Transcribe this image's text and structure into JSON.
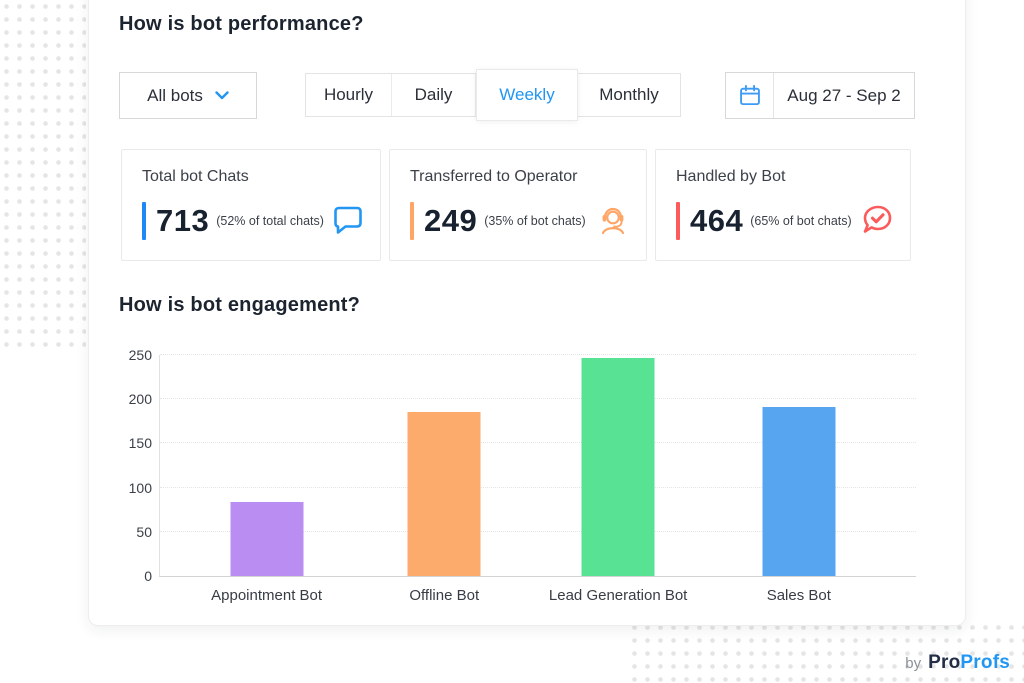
{
  "page": {
    "performance_title": "How is bot performance?",
    "engagement_title": "How is bot engagement?"
  },
  "filters": {
    "bot_dropdown": {
      "value": "All bots"
    },
    "period_tabs": {
      "items": [
        {
          "label": "Hourly",
          "selected": false
        },
        {
          "label": "Daily",
          "selected": false
        },
        {
          "label": "Weekly",
          "selected": true
        },
        {
          "label": "Monthly",
          "selected": false
        }
      ]
    },
    "date_range": {
      "value": "Aug 27 - Sep 2"
    }
  },
  "stats": [
    {
      "title": "Total bot Chats",
      "value": "713",
      "note": "(52% of total chats)",
      "accent_color": "#1e88f5",
      "icon": "chat-bubble-icon"
    },
    {
      "title": "Transferred to Operator",
      "value": "249",
      "note": "(35% of bot chats)",
      "accent_color": "#ffa566",
      "icon": "operator-headset-icon"
    },
    {
      "title": "Handled by Bot",
      "value": "464",
      "note": "(65% of bot chats)",
      "accent_color": "#fb5b5b",
      "icon": "chat-check-icon"
    }
  ],
  "chart_data": {
    "type": "bar",
    "title": "How is bot engagement?",
    "categories": [
      "Appointment Bot",
      "Offline Bot",
      "Lead Generation Bot",
      "Sales Bot"
    ],
    "values": [
      83,
      185,
      245,
      190
    ],
    "bar_colors": [
      "#b98df2",
      "#fcab6d",
      "#57e294",
      "#57a4f1"
    ],
    "bar_centers_pct": [
      14.1,
      37.6,
      60.6,
      84.5
    ],
    "xlabel": "",
    "ylabel": "",
    "ylim": [
      0,
      250
    ],
    "yticks": [
      0,
      50,
      100,
      150,
      200,
      250
    ],
    "grid": "horizontal-dotted",
    "legend": "none"
  },
  "footer": {
    "by_label": "by",
    "brand_part1": "Pro",
    "brand_part2": "Profs"
  },
  "colors": {
    "accent_blue": "#2196f3",
    "calendar_icon": "#3d9bf5"
  }
}
